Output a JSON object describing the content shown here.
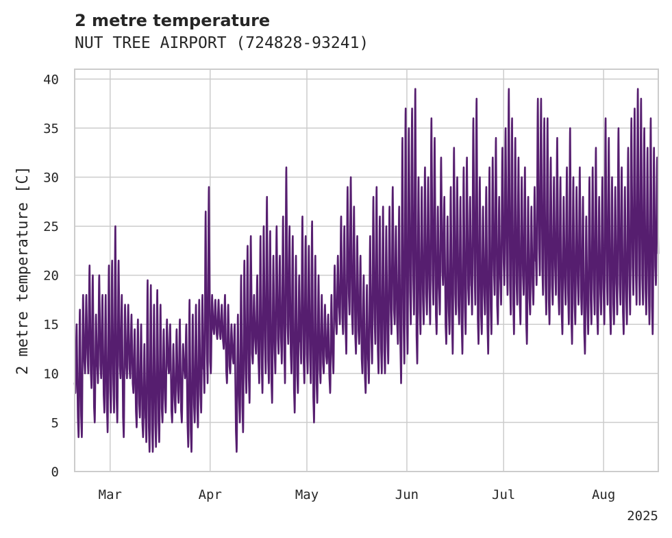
{
  "header": {
    "title": "2 metre temperature",
    "subtitle": "NUT TREE AIRPORT (724828-93241)"
  },
  "chart_data": {
    "type": "line",
    "ylabel": "2 metre temperature [C]",
    "ylim": [
      0,
      41
    ],
    "yticks": [
      0,
      5,
      10,
      15,
      20,
      25,
      30,
      35,
      40
    ],
    "x_range": [
      "2025-02-18",
      "2025-08-17"
    ],
    "xticks": [
      {
        "date": "2025-03-01",
        "label": "Mar"
      },
      {
        "date": "2025-04-01",
        "label": "Apr"
      },
      {
        "date": "2025-05-01",
        "label": "May"
      },
      {
        "date": "2025-06-01",
        "label": "Jun"
      },
      {
        "date": "2025-07-01",
        "label": "Jul"
      },
      {
        "date": "2025-08-01",
        "label": "Aug"
      }
    ],
    "year_label": "2025",
    "grid": true,
    "series": [
      {
        "color": "#561e6f",
        "resolution": "hourly",
        "daily_minmax": [
          [
            "2025-02-18",
            8,
            15
          ],
          [
            "2025-02-19",
            3.5,
            16.5
          ],
          [
            "2025-02-20",
            3.5,
            18
          ],
          [
            "2025-02-21",
            10,
            18
          ],
          [
            "2025-02-22",
            10,
            21
          ],
          [
            "2025-02-23",
            8.5,
            20
          ],
          [
            "2025-02-24",
            5,
            16
          ],
          [
            "2025-02-25",
            9,
            20
          ],
          [
            "2025-02-26",
            9.5,
            18
          ],
          [
            "2025-02-27",
            6,
            18
          ],
          [
            "2025-02-28",
            4,
            21
          ],
          [
            "2025-03-01",
            6,
            21.5
          ],
          [
            "2025-03-02",
            6,
            25
          ],
          [
            "2025-03-03",
            5,
            21.5
          ],
          [
            "2025-03-04",
            9.5,
            18
          ],
          [
            "2025-03-05",
            3.5,
            17
          ],
          [
            "2025-03-06",
            9.5,
            17
          ],
          [
            "2025-03-07",
            9.5,
            16
          ],
          [
            "2025-03-08",
            8,
            14.5
          ],
          [
            "2025-03-09",
            4.5,
            15.5
          ],
          [
            "2025-03-10",
            5.5,
            15
          ],
          [
            "2025-03-11",
            3.5,
            13
          ],
          [
            "2025-03-12",
            3,
            19.5
          ],
          [
            "2025-03-13",
            2,
            19
          ],
          [
            "2025-03-14",
            2,
            17
          ],
          [
            "2025-03-15",
            2.5,
            18.5
          ],
          [
            "2025-03-16",
            3,
            17
          ],
          [
            "2025-03-17",
            5,
            14.5
          ],
          [
            "2025-03-18",
            6,
            15.5
          ],
          [
            "2025-03-19",
            10,
            15
          ],
          [
            "2025-03-20",
            5,
            13
          ],
          [
            "2025-03-21",
            6,
            14.5
          ],
          [
            "2025-03-22",
            7,
            15.5
          ],
          [
            "2025-03-23",
            5,
            13
          ],
          [
            "2025-03-24",
            9.5,
            15
          ],
          [
            "2025-03-25",
            2.5,
            17.5
          ],
          [
            "2025-03-26",
            2,
            16
          ],
          [
            "2025-03-27",
            5,
            17
          ],
          [
            "2025-03-28",
            4.5,
            17.5
          ],
          [
            "2025-03-29",
            6,
            18
          ],
          [
            "2025-03-30",
            8,
            26.5
          ],
          [
            "2025-03-31",
            9,
            29
          ],
          [
            "2025-04-01",
            10,
            18
          ],
          [
            "2025-04-02",
            14,
            17.5
          ],
          [
            "2025-04-03",
            13.5,
            17.5
          ],
          [
            "2025-04-04",
            13.5,
            17
          ],
          [
            "2025-04-05",
            12.5,
            18
          ],
          [
            "2025-04-06",
            9,
            17
          ],
          [
            "2025-04-07",
            10,
            15
          ],
          [
            "2025-04-08",
            11,
            15
          ],
          [
            "2025-04-09",
            2,
            16
          ],
          [
            "2025-04-10",
            5,
            20
          ],
          [
            "2025-04-11",
            4,
            21.5
          ],
          [
            "2025-04-12",
            8,
            23
          ],
          [
            "2025-04-13",
            7,
            24
          ],
          [
            "2025-04-14",
            11,
            18
          ],
          [
            "2025-04-15",
            12,
            20
          ],
          [
            "2025-04-16",
            9,
            24
          ],
          [
            "2025-04-17",
            8,
            25
          ],
          [
            "2025-04-18",
            10,
            28
          ],
          [
            "2025-04-19",
            9,
            24.5
          ],
          [
            "2025-04-20",
            7,
            22
          ],
          [
            "2025-04-21",
            10,
            25
          ],
          [
            "2025-04-22",
            12,
            22
          ],
          [
            "2025-04-23",
            11,
            26
          ],
          [
            "2025-04-24",
            9,
            31
          ],
          [
            "2025-04-25",
            13,
            25
          ],
          [
            "2025-04-26",
            10,
            24
          ],
          [
            "2025-04-27",
            6,
            22
          ],
          [
            "2025-04-28",
            8,
            20
          ],
          [
            "2025-04-29",
            11,
            26
          ],
          [
            "2025-04-30",
            9,
            24
          ],
          [
            "2025-05-01",
            10,
            23
          ],
          [
            "2025-05-02",
            9,
            25.5
          ],
          [
            "2025-05-03",
            5,
            22
          ],
          [
            "2025-05-04",
            7,
            20
          ],
          [
            "2025-05-05",
            9,
            18
          ],
          [
            "2025-05-06",
            10,
            17
          ],
          [
            "2025-05-07",
            11,
            16
          ],
          [
            "2025-05-08",
            8,
            18
          ],
          [
            "2025-05-09",
            10,
            21
          ],
          [
            "2025-05-10",
            14,
            22
          ],
          [
            "2025-05-11",
            15,
            26
          ],
          [
            "2025-05-12",
            14,
            25
          ],
          [
            "2025-05-13",
            12,
            29
          ],
          [
            "2025-05-14",
            16,
            30
          ],
          [
            "2025-05-15",
            14,
            27
          ],
          [
            "2025-05-16",
            12,
            24
          ],
          [
            "2025-05-17",
            13,
            22
          ],
          [
            "2025-05-18",
            10,
            20
          ],
          [
            "2025-05-19",
            8,
            19
          ],
          [
            "2025-05-20",
            9,
            24
          ],
          [
            "2025-05-21",
            11,
            28
          ],
          [
            "2025-05-22",
            13,
            29
          ],
          [
            "2025-05-23",
            10,
            26
          ],
          [
            "2025-05-24",
            10,
            27
          ],
          [
            "2025-05-25",
            10,
            25
          ],
          [
            "2025-05-26",
            11,
            27
          ],
          [
            "2025-05-27",
            14,
            29
          ],
          [
            "2025-05-28",
            15,
            25
          ],
          [
            "2025-05-29",
            13,
            27
          ],
          [
            "2025-05-30",
            9,
            34
          ],
          [
            "2025-05-31",
            11,
            37
          ],
          [
            "2025-06-01",
            12,
            35
          ],
          [
            "2025-06-02",
            15,
            37
          ],
          [
            "2025-06-03",
            16,
            39
          ],
          [
            "2025-06-04",
            11,
            30
          ],
          [
            "2025-06-05",
            14,
            29
          ],
          [
            "2025-06-06",
            15,
            31
          ],
          [
            "2025-06-07",
            16,
            30
          ],
          [
            "2025-06-08",
            15,
            36
          ],
          [
            "2025-06-09",
            17,
            34
          ],
          [
            "2025-06-10",
            14,
            27
          ],
          [
            "2025-06-11",
            16,
            32
          ],
          [
            "2025-06-12",
            19,
            28
          ],
          [
            "2025-06-13",
            13,
            26
          ],
          [
            "2025-06-14",
            14,
            29
          ],
          [
            "2025-06-15",
            12,
            33
          ],
          [
            "2025-06-16",
            16,
            30
          ],
          [
            "2025-06-17",
            15,
            28
          ],
          [
            "2025-06-18",
            12,
            31
          ],
          [
            "2025-06-19",
            14,
            32
          ],
          [
            "2025-06-20",
            17,
            28
          ],
          [
            "2025-06-21",
            16,
            36
          ],
          [
            "2025-06-22",
            17,
            38
          ],
          [
            "2025-06-23",
            13,
            30
          ],
          [
            "2025-06-24",
            14,
            27
          ],
          [
            "2025-06-25",
            16,
            29
          ],
          [
            "2025-06-26",
            12,
            31
          ],
          [
            "2025-06-27",
            14,
            32
          ],
          [
            "2025-06-28",
            18,
            34
          ],
          [
            "2025-06-29",
            15,
            28
          ],
          [
            "2025-06-30",
            17,
            33
          ],
          [
            "2025-07-01",
            19,
            35
          ],
          [
            "2025-07-02",
            18,
            39
          ],
          [
            "2025-07-03",
            16,
            36
          ],
          [
            "2025-07-04",
            14,
            34
          ],
          [
            "2025-07-05",
            17,
            32
          ],
          [
            "2025-07-06",
            15,
            30
          ],
          [
            "2025-07-07",
            18,
            31
          ],
          [
            "2025-07-08",
            13,
            28
          ],
          [
            "2025-07-09",
            16,
            27
          ],
          [
            "2025-07-10",
            17,
            29
          ],
          [
            "2025-07-11",
            19,
            38
          ],
          [
            "2025-07-12",
            20,
            38
          ],
          [
            "2025-07-13",
            18,
            36
          ],
          [
            "2025-07-14",
            16,
            36
          ],
          [
            "2025-07-15",
            15,
            32
          ],
          [
            "2025-07-16",
            17,
            30
          ],
          [
            "2025-07-17",
            18,
            34
          ],
          [
            "2025-07-18",
            16,
            30
          ],
          [
            "2025-07-19",
            14,
            28
          ],
          [
            "2025-07-20",
            17,
            31
          ],
          [
            "2025-07-21",
            15,
            35
          ],
          [
            "2025-07-22",
            13,
            30
          ],
          [
            "2025-07-23",
            15,
            29
          ],
          [
            "2025-07-24",
            17,
            31
          ],
          [
            "2025-07-25",
            16,
            28
          ],
          [
            "2025-07-26",
            12,
            26
          ],
          [
            "2025-07-27",
            14,
            30
          ],
          [
            "2025-07-28",
            15,
            31
          ],
          [
            "2025-07-29",
            16,
            33
          ],
          [
            "2025-07-30",
            14,
            28
          ],
          [
            "2025-07-31",
            16,
            30
          ],
          [
            "2025-08-01",
            15,
            36
          ],
          [
            "2025-08-02",
            17,
            34
          ],
          [
            "2025-08-03",
            14,
            30
          ],
          [
            "2025-08-04",
            15,
            29
          ],
          [
            "2025-08-05",
            16,
            35
          ],
          [
            "2025-08-06",
            17,
            31
          ],
          [
            "2025-08-07",
            14,
            29
          ],
          [
            "2025-08-08",
            15,
            33
          ],
          [
            "2025-08-09",
            16,
            36
          ],
          [
            "2025-08-10",
            18,
            37
          ],
          [
            "2025-08-11",
            17,
            39
          ],
          [
            "2025-08-12",
            17,
            38
          ],
          [
            "2025-08-13",
            17,
            35
          ],
          [
            "2025-08-14",
            16,
            33
          ],
          [
            "2025-08-15",
            15,
            36
          ],
          [
            "2025-08-16",
            14,
            33
          ],
          [
            "2025-08-17",
            19,
            32
          ]
        ]
      }
    ]
  }
}
